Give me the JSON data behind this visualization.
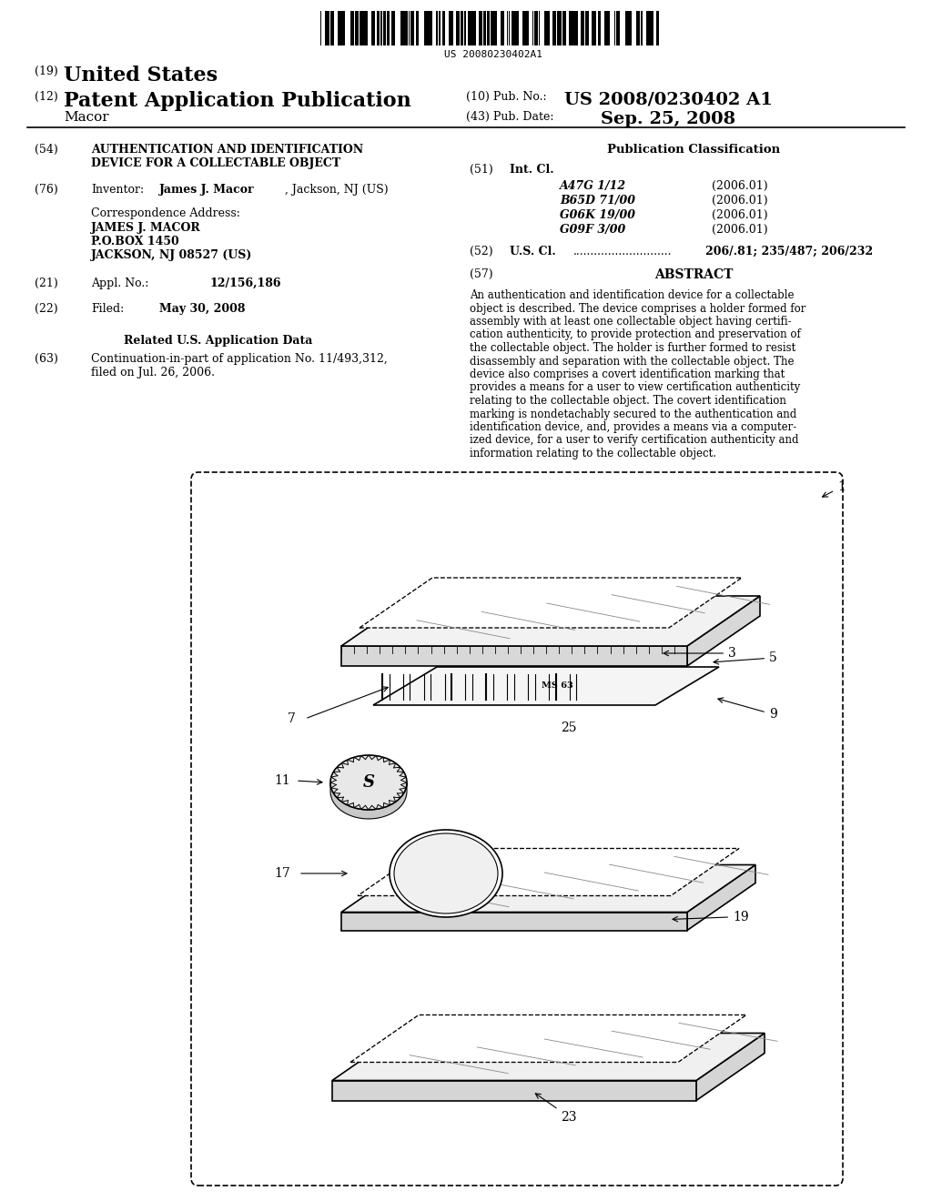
{
  "bg_color": "#ffffff",
  "barcode_text": "US 20080230402A1",
  "header_19": "(19)",
  "header_19_text": "United States",
  "header_12": "(12)",
  "header_12_text": "Patent Application Publication",
  "header_10_label": "(10) Pub. No.:",
  "header_10_value": "US 2008/0230402 A1",
  "header_43_label": "(43) Pub. Date:",
  "header_43_value": "Sep. 25, 2008",
  "author_last": "Macor",
  "field_54_num": "(54)",
  "field_54_title1": "AUTHENTICATION AND IDENTIFICATION",
  "field_54_title2": "DEVICE FOR A COLLECTABLE OBJECT",
  "field_76_num": "(76)",
  "field_76_label": "Inventor:",
  "field_76_value_bold": "James J. Macor",
  "field_76_value_rest": ", Jackson, NJ (US)",
  "corr_label": "Correspondence Address:",
  "corr_name": "JAMES J. MACOR",
  "corr_addr1": "P.O.BOX 1450",
  "corr_addr2": "JACKSON, NJ 08527 (US)",
  "field_21_num": "(21)",
  "field_21_label": "Appl. No.:",
  "field_21_value": "12/156,186",
  "field_22_num": "(22)",
  "field_22_label": "Filed:",
  "field_22_value": "May 30, 2008",
  "related_title": "Related U.S. Application Data",
  "field_63_num": "(63)",
  "field_63_line1": "Continuation-in-part of application No. 11/493,312,",
  "field_63_line2": "filed on Jul. 26, 2006.",
  "pub_class_title": "Publication Classification",
  "field_51_num": "(51)",
  "field_51_label": "Int. Cl.",
  "int_cl_entries": [
    [
      "A47G 1/12",
      "(2006.01)"
    ],
    [
      "B65D 71/00",
      "(2006.01)"
    ],
    [
      "G06K 19/00",
      "(2006.01)"
    ],
    [
      "G09F 3/00",
      "(2006.01)"
    ]
  ],
  "field_52_num": "(52)",
  "field_52_label": "U.S. Cl.",
  "field_52_dots": "............................",
  "field_52_value": "206/.81; 235/487; 206/232",
  "field_57_num": "(57)",
  "field_57_label": "ABSTRACT",
  "abstract_lines": [
    "An authentication and identification device for a collectable",
    "object is described. The device comprises a holder formed for",
    "assembly with at least one collectable object having certifi-",
    "cation authenticity, to provide protection and preservation of",
    "the collectable object. The holder is further formed to resist",
    "disassembly and separation with the collectable object. The",
    "device also comprises a covert identification marking that",
    "provides a means for a user to view certification authenticity",
    "relating to the collectable object. The covert identification",
    "marking is nondetachably secured to the authentication and",
    "identification device, and, provides a means via a computer-",
    "ized device, for a user to verify certification authenticity and",
    "information relating to the collectable object."
  ]
}
